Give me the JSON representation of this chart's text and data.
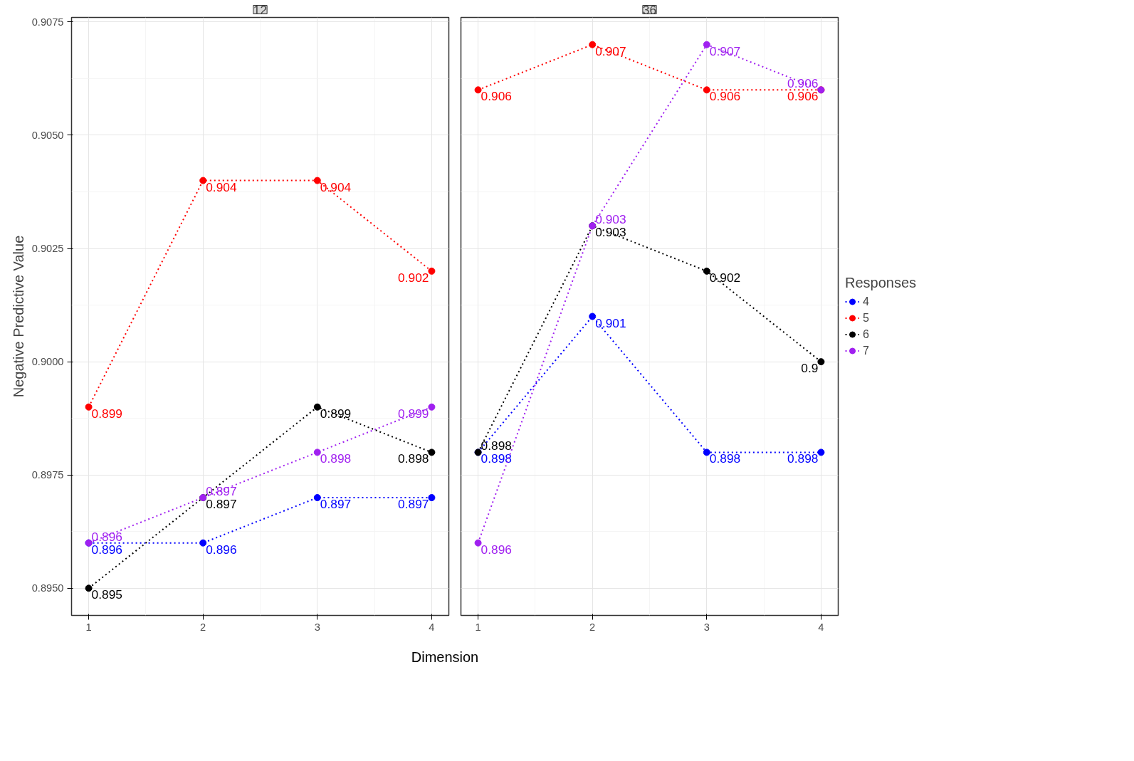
{
  "chart_data": [
    {
      "type": "line",
      "title": "12",
      "xlabel": "Dimension",
      "ylabel": "Negative Predictive Value",
      "x": [
        1,
        2,
        3,
        4
      ],
      "xlim": [
        0.85,
        4.15
      ],
      "xticks": [
        1,
        2,
        3,
        4
      ],
      "ylim": [
        0.8944,
        0.9076
      ],
      "yticks": [
        {
          "value": 0.895,
          "label": "0.8950"
        },
        {
          "value": 0.8975,
          "label": "0.8975"
        },
        {
          "value": 0.9,
          "label": "0.9000"
        },
        {
          "value": 0.9025,
          "label": "0.9025"
        },
        {
          "value": 0.905,
          "label": "0.9050"
        },
        {
          "value": 0.9075,
          "label": "0.9075"
        }
      ],
      "grid": true,
      "legend": "right",
      "marker": "circle",
      "line_style": "dotted",
      "data_labels": true,
      "series": [
        {
          "name": "4",
          "color": "#0000ff",
          "values": [
            0.896,
            0.896,
            0.897,
            0.897
          ]
        },
        {
          "name": "5",
          "color": "#ff0000",
          "values": [
            0.899,
            0.904,
            0.904,
            0.902
          ]
        },
        {
          "name": "6",
          "color": "#000000",
          "values": [
            0.895,
            0.897,
            0.899,
            0.898
          ]
        },
        {
          "name": "7",
          "color": "#a020f0",
          "values": [
            0.896,
            0.897,
            0.898,
            0.899
          ]
        }
      ]
    },
    {
      "type": "line",
      "title": "36",
      "legend_title": "Responses",
      "x": [
        1,
        2,
        3,
        4
      ],
      "xlim": [
        0.85,
        4.15
      ],
      "xticks": [
        1,
        2,
        3,
        4
      ],
      "ylim": [
        0.8944,
        0.9076
      ],
      "yticks": [
        0.895,
        0.8975,
        0.9,
        0.9025,
        0.905,
        0.9075
      ],
      "tick_labels": "x",
      "grid": true,
      "legend": "right",
      "marker": "circle",
      "line_style": "dotted",
      "data_labels": true,
      "series": [
        {
          "name": "4",
          "color": "#0000ff",
          "values": [
            0.898,
            0.901,
            0.898,
            0.898
          ]
        },
        {
          "name": "5",
          "color": "#ff0000",
          "values": [
            0.906,
            0.907,
            0.906,
            0.906
          ]
        },
        {
          "name": "6",
          "color": "#000000",
          "values": [
            0.898,
            0.903,
            0.902,
            0.9
          ]
        },
        {
          "name": "7",
          "color": "#a020f0",
          "values": [
            0.896,
            0.903,
            0.907,
            0.906
          ]
        }
      ]
    }
  ]
}
